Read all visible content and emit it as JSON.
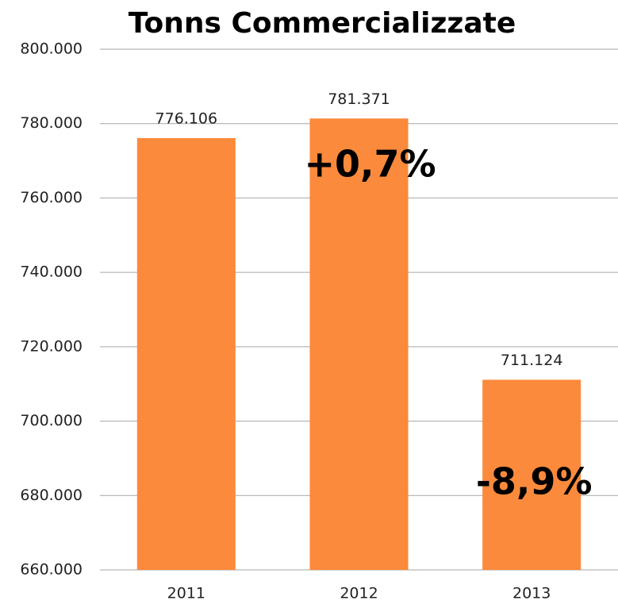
{
  "chart_data": {
    "type": "bar",
    "title": "Tonns Commercializzate",
    "categories": [
      "2011",
      "2012",
      "2013"
    ],
    "values": [
      776106,
      781371,
      711124
    ],
    "value_labels": [
      "776.106",
      "781.371",
      "711.124"
    ],
    "color": "#fb8a3c",
    "ylim": [
      660000,
      800000
    ],
    "yticks": [
      {
        "value": 660000,
        "label": "660.000"
      },
      {
        "value": 680000,
        "label": "680.000"
      },
      {
        "value": 700000,
        "label": "700.000"
      },
      {
        "value": 720000,
        "label": "720.000"
      },
      {
        "value": 740000,
        "label": "740.000"
      },
      {
        "value": 760000,
        "label": "760.000"
      },
      {
        "value": 780000,
        "label": "780.000"
      },
      {
        "value": 800000,
        "label": "800.000"
      }
    ],
    "grid": true,
    "annotations": [
      "+0,7%",
      "-8,9%"
    ]
  }
}
